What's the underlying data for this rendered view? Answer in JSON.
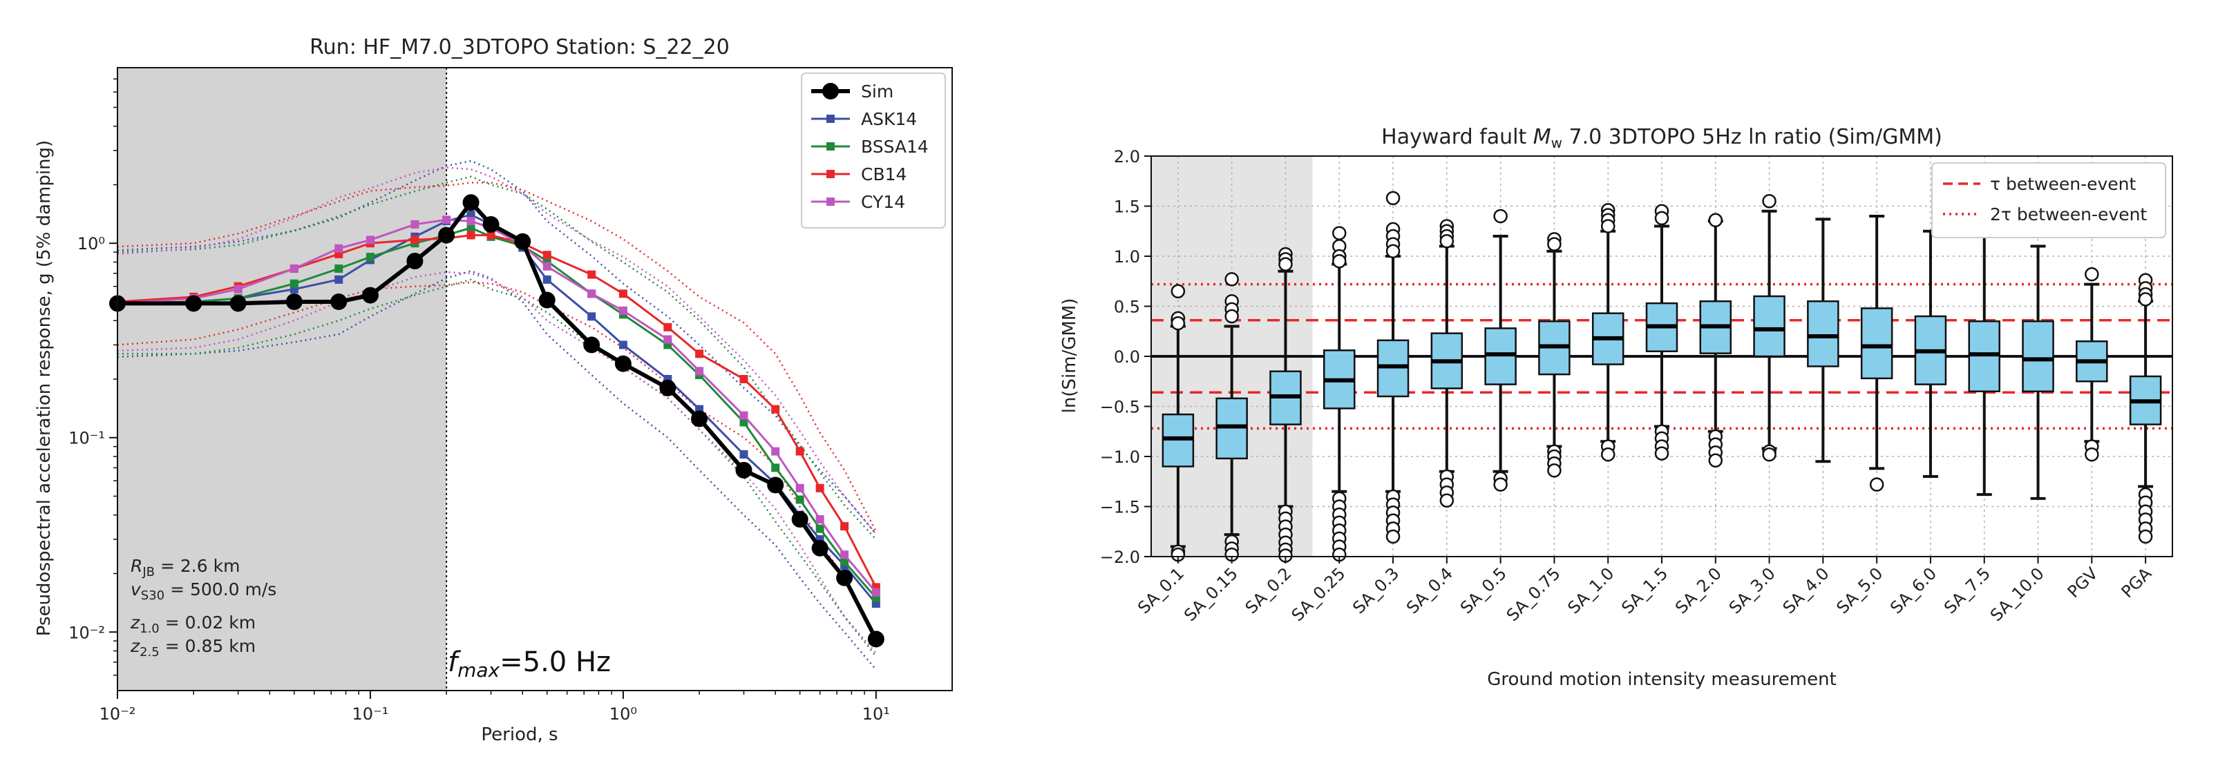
{
  "chart_data": [
    {
      "type": "line",
      "title": "Run: HF_M7.0_3DTOPO Station: S_22_20",
      "xlabel": "Period, s",
      "ylabel": "Pseudospectral acceleration response, g (5% damping)",
      "xscale": "log",
      "yscale": "log",
      "xlim": [
        0.01,
        20
      ],
      "ylim": [
        0.005,
        8
      ],
      "grid": false,
      "legend_position": "top-right",
      "x_tick_labels": [
        "10⁻²",
        "10⁻¹",
        "10⁰",
        "10¹"
      ],
      "y_tick_labels": [
        "10⁻²",
        "10⁻¹",
        "10⁰"
      ],
      "x_ticks": [
        0.01,
        0.1,
        1,
        10
      ],
      "y_ticks": [
        0.01,
        0.1,
        1
      ],
      "shaded_region": {
        "x": [
          0.01,
          0.2
        ],
        "color": "#d3d3d3"
      },
      "fmax_label": "fmax=5.0 Hz",
      "annotations": [
        "RJB = 2.6 km",
        "vs30 = 500.0 m/s",
        "z1.0 = 0.02 km",
        "z2.5 = 0.85 km"
      ],
      "series": [
        {
          "name": "Sim",
          "color": "#000000",
          "x": [
            0.01,
            0.02,
            0.03,
            0.05,
            0.075,
            0.1,
            0.15,
            0.2,
            0.25,
            0.3,
            0.4,
            0.5,
            0.75,
            1.0,
            1.5,
            2.0,
            3.0,
            4.0,
            5.0,
            6.0,
            7.5,
            10.0
          ],
          "y": [
            0.49,
            0.49,
            0.49,
            0.5,
            0.5,
            0.54,
            0.81,
            1.1,
            1.62,
            1.25,
            1.02,
            0.51,
            0.3,
            0.24,
            0.18,
            0.125,
            0.068,
            0.057,
            0.038,
            0.027,
            0.019,
            0.0092
          ]
        },
        {
          "name": "ASK14",
          "color": "#3b4fa6",
          "x": [
            0.01,
            0.02,
            0.03,
            0.05,
            0.075,
            0.1,
            0.15,
            0.2,
            0.25,
            0.3,
            0.4,
            0.5,
            0.75,
            1.0,
            1.5,
            2.0,
            3.0,
            4.0,
            5.0,
            6.0,
            7.5,
            10.0
          ],
          "y": [
            0.49,
            0.5,
            0.52,
            0.58,
            0.65,
            0.82,
            1.08,
            1.3,
            1.4,
            1.25,
            0.95,
            0.65,
            0.42,
            0.3,
            0.2,
            0.14,
            0.082,
            0.058,
            0.04,
            0.03,
            0.022,
            0.014
          ]
        },
        {
          "name": "BSSA14",
          "color": "#1f8a3a",
          "x": [
            0.01,
            0.02,
            0.03,
            0.05,
            0.075,
            0.1,
            0.15,
            0.2,
            0.25,
            0.3,
            0.4,
            0.5,
            0.75,
            1.0,
            1.5,
            2.0,
            3.0,
            4.0,
            5.0,
            6.0,
            7.5,
            10.0
          ],
          "y": [
            0.49,
            0.5,
            0.52,
            0.62,
            0.74,
            0.85,
            1.0,
            1.1,
            1.2,
            1.08,
            0.97,
            0.81,
            0.55,
            0.43,
            0.3,
            0.21,
            0.12,
            0.07,
            0.048,
            0.034,
            0.023,
            0.015
          ]
        },
        {
          "name": "CB14",
          "color": "#e8272a",
          "x": [
            0.01,
            0.02,
            0.03,
            0.05,
            0.075,
            0.1,
            0.15,
            0.2,
            0.25,
            0.3,
            0.4,
            0.5,
            0.75,
            1.0,
            1.5,
            2.0,
            3.0,
            4.0,
            5.0,
            6.0,
            7.5,
            10.0
          ],
          "y": [
            0.5,
            0.53,
            0.6,
            0.74,
            0.88,
            1.0,
            1.04,
            1.06,
            1.1,
            1.1,
            1.0,
            0.87,
            0.69,
            0.55,
            0.37,
            0.27,
            0.2,
            0.14,
            0.085,
            0.055,
            0.035,
            0.017
          ]
        },
        {
          "name": "CY14",
          "color": "#c056c0",
          "x": [
            0.01,
            0.02,
            0.03,
            0.05,
            0.075,
            0.1,
            0.15,
            0.2,
            0.25,
            0.3,
            0.4,
            0.5,
            0.75,
            1.0,
            1.5,
            2.0,
            3.0,
            4.0,
            5.0,
            6.0,
            7.5,
            10.0
          ],
          "y": [
            0.49,
            0.52,
            0.58,
            0.74,
            0.94,
            1.04,
            1.25,
            1.32,
            1.3,
            1.2,
            0.98,
            0.76,
            0.55,
            0.45,
            0.32,
            0.22,
            0.13,
            0.085,
            0.055,
            0.038,
            0.025,
            0.016
          ]
        }
      ],
      "uncertainty_bands": [
        {
          "color": "#3b4fa6",
          "upper": [
            0.92,
            0.96,
            1.02,
            1.16,
            1.35,
            1.62,
            2.1,
            2.5,
            2.65,
            2.4,
            1.85,
            1.3,
            0.86,
            0.62,
            0.42,
            0.3,
            0.18,
            0.13,
            0.09,
            0.068,
            0.05,
            0.032
          ],
          "lower": [
            0.26,
            0.27,
            0.28,
            0.31,
            0.34,
            0.42,
            0.55,
            0.66,
            0.72,
            0.66,
            0.5,
            0.34,
            0.21,
            0.15,
            0.1,
            0.068,
            0.04,
            0.028,
            0.019,
            0.014,
            0.01,
            0.0064
          ]
        },
        {
          "color": "#1f8a3a",
          "upper": [
            0.9,
            0.93,
            0.98,
            1.16,
            1.38,
            1.58,
            1.85,
            2.05,
            2.2,
            2.0,
            1.8,
            1.5,
            1.02,
            0.8,
            0.56,
            0.4,
            0.23,
            0.135,
            0.092,
            0.066,
            0.045,
            0.03
          ],
          "lower": [
            0.27,
            0.27,
            0.29,
            0.34,
            0.4,
            0.46,
            0.54,
            0.6,
            0.65,
            0.58,
            0.52,
            0.44,
            0.3,
            0.23,
            0.16,
            0.11,
            0.063,
            0.037,
            0.025,
            0.018,
            0.012,
            0.0075
          ]
        },
        {
          "color": "#e8272a",
          "upper": [
            0.96,
            1.0,
            1.12,
            1.38,
            1.64,
            1.86,
            1.94,
            1.98,
            2.05,
            2.05,
            1.88,
            1.65,
            1.3,
            1.05,
            0.72,
            0.53,
            0.39,
            0.27,
            0.165,
            0.106,
            0.068,
            0.033
          ],
          "lower": [
            0.3,
            0.32,
            0.36,
            0.44,
            0.52,
            0.58,
            0.6,
            0.61,
            0.63,
            0.62,
            0.56,
            0.48,
            0.37,
            0.29,
            0.19,
            0.14,
            0.1,
            0.072,
            0.044,
            0.029,
            0.019,
            0.0092
          ]
        },
        {
          "color": "#c056c0",
          "upper": [
            0.88,
            0.94,
            1.05,
            1.35,
            1.72,
            1.92,
            2.3,
            2.45,
            2.4,
            2.2,
            1.8,
            1.42,
            1.03,
            0.85,
            0.6,
            0.42,
            0.25,
            0.165,
            0.108,
            0.075,
            0.05,
            0.032
          ],
          "lower": [
            0.28,
            0.29,
            0.32,
            0.4,
            0.5,
            0.56,
            0.67,
            0.71,
            0.7,
            0.65,
            0.53,
            0.4,
            0.29,
            0.23,
            0.16,
            0.11,
            0.066,
            0.043,
            0.028,
            0.019,
            0.012,
            0.0078
          ]
        }
      ]
    },
    {
      "type": "box",
      "title": "Hayward fault Mw 7.0 3DTOPO 5Hz ln ratio (Sim/GMM)",
      "xlabel": "Ground motion intensity measurement",
      "ylabel": "ln(Sim/GMM)",
      "ylim": [
        -2.0,
        2.0
      ],
      "y_ticks": [
        -2.0,
        -1.5,
        -1.0,
        -0.5,
        0.0,
        0.5,
        1.0,
        1.5,
        2.0
      ],
      "y_tick_labels": [
        "−2.0",
        "−1.5",
        "−1.0",
        "−0.5",
        "0.0",
        "0.5",
        "1.0",
        "1.5",
        "2.0"
      ],
      "grid": true,
      "legend_position": "top-right",
      "shaded_region": {
        "categories": [
          "SA_0.1",
          "SA_0.15",
          "SA_0.2"
        ],
        "color": "#e4e4e4"
      },
      "reference_lines": [
        {
          "name": "τ between-event",
          "style": "dashed",
          "color": "#e8272a",
          "y": [
            0.36,
            -0.36
          ]
        },
        {
          "name": "2τ between-event",
          "style": "dotted",
          "color": "#e8272a",
          "y": [
            0.72,
            -0.72
          ]
        }
      ],
      "box_color": "#87ceeb",
      "categories": [
        "SA_0.1",
        "SA_0.15",
        "SA_0.2",
        "SA_0.25",
        "SA_0.3",
        "SA_0.4",
        "SA_0.5",
        "SA_0.75",
        "SA_1.0",
        "SA_1.5",
        "SA_2.0",
        "SA_3.0",
        "SA_4.0",
        "SA_5.0",
        "SA_6.0",
        "SA_7.5",
        "SA_10.0",
        "PGV",
        "PGA"
      ],
      "boxes": [
        {
          "q1": -1.1,
          "median": -0.82,
          "q3": -0.58,
          "whisker_low": -1.9,
          "whisker_high": 0.3,
          "outliers": [
            0.65,
            0.38,
            0.33,
            -1.95,
            -1.98
          ]
        },
        {
          "q1": -1.02,
          "median": -0.7,
          "q3": -0.42,
          "whisker_low": -1.78,
          "whisker_high": 0.3,
          "outliers": [
            0.77,
            0.55,
            0.47,
            0.4,
            -1.85,
            -1.92,
            -1.98
          ]
        },
        {
          "q1": -0.68,
          "median": -0.4,
          "q3": -0.15,
          "whisker_low": -1.5,
          "whisker_high": 0.85,
          "outliers": [
            1.02,
            0.97,
            0.92,
            -1.55,
            -1.62,
            -1.7,
            -1.78,
            -1.86,
            -1.93,
            -1.99
          ]
        },
        {
          "q1": -0.52,
          "median": -0.24,
          "q3": 0.06,
          "whisker_low": -1.35,
          "whisker_high": 0.92,
          "outliers": [
            1.23,
            1.1,
            1.0,
            0.95,
            -1.42,
            -1.5,
            -1.58,
            -1.66,
            -1.74,
            -1.82,
            -1.9,
            -1.98
          ]
        },
        {
          "q1": -0.4,
          "median": -0.1,
          "q3": 0.16,
          "whisker_low": -1.35,
          "whisker_high": 1.0,
          "outliers": [
            1.58,
            1.27,
            1.2,
            1.12,
            1.05,
            -1.4,
            -1.48,
            -1.56,
            -1.64,
            -1.72,
            -1.8
          ]
        },
        {
          "q1": -0.32,
          "median": -0.05,
          "q3": 0.23,
          "whisker_low": -1.15,
          "whisker_high": 1.1,
          "outliers": [
            1.3,
            1.25,
            1.2,
            1.15,
            -1.2,
            -1.28,
            -1.36,
            -1.44
          ]
        },
        {
          "q1": -0.28,
          "median": 0.02,
          "q3": 0.28,
          "whisker_low": -1.15,
          "whisker_high": 1.2,
          "outliers": [
            1.4,
            -1.22,
            -1.28
          ]
        },
        {
          "q1": -0.18,
          "median": 0.1,
          "q3": 0.35,
          "whisker_low": -0.9,
          "whisker_high": 1.05,
          "outliers": [
            1.17,
            1.12,
            -0.95,
            -1.0,
            -1.07,
            -1.14
          ]
        },
        {
          "q1": -0.08,
          "median": 0.18,
          "q3": 0.43,
          "whisker_low": -0.85,
          "whisker_high": 1.25,
          "outliers": [
            1.46,
            1.41,
            1.36,
            1.3,
            -0.9,
            -0.98
          ]
        },
        {
          "q1": 0.05,
          "median": 0.3,
          "q3": 0.53,
          "whisker_low": -0.7,
          "whisker_high": 1.3,
          "outliers": [
            1.45,
            1.38,
            -0.75,
            -0.82,
            -0.9,
            -0.97
          ]
        },
        {
          "q1": 0.03,
          "median": 0.3,
          "q3": 0.55,
          "whisker_low": -0.75,
          "whisker_high": 1.35,
          "outliers": [
            1.36,
            -0.8,
            -0.88,
            -0.96,
            -1.04
          ]
        },
        {
          "q1": 0.0,
          "median": 0.27,
          "q3": 0.6,
          "whisker_low": -0.92,
          "whisker_high": 1.45,
          "outliers": [
            1.55,
            -0.95,
            -0.98
          ]
        },
        {
          "q1": -0.1,
          "median": 0.2,
          "q3": 0.55,
          "whisker_low": -1.05,
          "whisker_high": 1.37,
          "outliers": []
        },
        {
          "q1": -0.22,
          "median": 0.1,
          "q3": 0.48,
          "whisker_low": -1.12,
          "whisker_high": 1.4,
          "outliers": [
            -1.28
          ]
        },
        {
          "q1": -0.28,
          "median": 0.05,
          "q3": 0.4,
          "whisker_low": -1.2,
          "whisker_high": 1.25,
          "outliers": []
        },
        {
          "q1": -0.35,
          "median": 0.02,
          "q3": 0.35,
          "whisker_low": -1.38,
          "whisker_high": 1.3,
          "outliers": []
        },
        {
          "q1": -0.35,
          "median": -0.03,
          "q3": 0.35,
          "whisker_low": -1.42,
          "whisker_high": 1.1,
          "outliers": []
        },
        {
          "q1": -0.25,
          "median": -0.05,
          "q3": 0.15,
          "whisker_low": -0.85,
          "whisker_high": 0.72,
          "outliers": [
            0.82,
            -0.9,
            -0.98
          ]
        },
        {
          "q1": -0.68,
          "median": -0.45,
          "q3": -0.2,
          "whisker_low": -1.3,
          "whisker_high": 0.55,
          "outliers": [
            0.76,
            0.68,
            0.62,
            0.57,
            -1.38,
            -1.46,
            -1.55,
            -1.63,
            -1.72,
            -1.8
          ]
        }
      ]
    }
  ]
}
